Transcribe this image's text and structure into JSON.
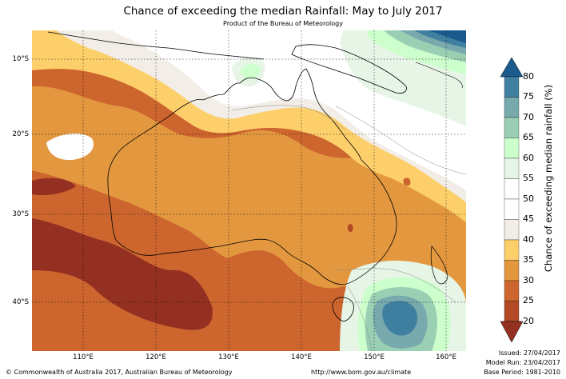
{
  "title": "Chance of exceeding the median Rainfall: May to July 2017",
  "subtitle": "Product of the Bureau of Meteorology",
  "map": {
    "lat_labels": [
      "10°S",
      "20°S",
      "30°S",
      "40°S"
    ],
    "lon_labels": [
      "110°E",
      "120°E",
      "130°E",
      "140°E",
      "150°E",
      "160°E"
    ]
  },
  "colorbar": {
    "title": "Chance of exceeding median rainfall (%)",
    "ticks": [
      "80",
      "75",
      "70",
      "65",
      "60",
      "55",
      "50",
      "45",
      "40",
      "35",
      "30",
      "25",
      "20"
    ],
    "colors": {
      "above_80": "#1a5a8c",
      "75_80": "#3f7fa0",
      "70_75": "#77a9ad",
      "65_70": "#9bcfb4",
      "60_65": "#ccffcc",
      "55_60": "#e6f5e6",
      "50_55": "#ffffff",
      "45_50": "#ffffff",
      "40_45": "#f2ede6",
      "35_40": "#fdcf6a",
      "30_35": "#e39840",
      "25_30": "#cd662e",
      "20_25": "#b34a25",
      "below_20": "#943021"
    }
  },
  "footer": {
    "copyright": "© Commonwealth of Australia 2017, Australian Bureau of Meteorology",
    "url": "http://www.bom.gov.au/climate",
    "issued": "Issued: 27/04/2017",
    "model_run": "Model Run: 23/04/2017",
    "base_period": "Base Period: 1981-2010"
  }
}
